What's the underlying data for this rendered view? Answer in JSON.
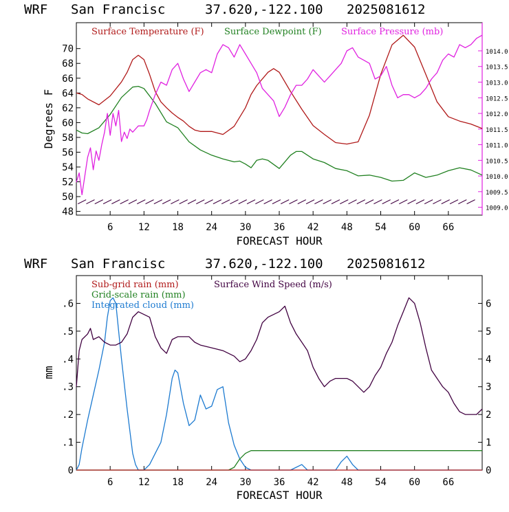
{
  "top_chart": {
    "header": {
      "model": "WRF",
      "site": "San Francisc",
      "coords": "37.620,-122.100",
      "cycle": "2025081612"
    },
    "legend": {
      "temperature": "Surface Temperature (F)",
      "dewpoint": "Surface Dewpoint (F)",
      "pressure": "Surface Pressure (mb)"
    },
    "ylabel": "Degrees F",
    "xlabel": "FORECAST HOUR"
  },
  "bottom_chart": {
    "header": {
      "model": "WRF",
      "site": "San Francisc",
      "coords": "37.620,-122.100",
      "cycle": "2025081612"
    },
    "legend": {
      "subgrid": "Sub-grid rain (mm)",
      "gridscale": "Grid-scale rain (mm)",
      "cloud": "Integrated cloud (mm)",
      "wind": "Surface Wind Speed (m/s)"
    },
    "ylabel": "mm",
    "xlabel": "FORECAST HOUR"
  },
  "colors": {
    "temperature": "#b01818",
    "dewpoint": "#208020",
    "pressure": "#e020e0",
    "subgrid": "#b01818",
    "gridscale": "#208020",
    "cloud": "#1c7ad0",
    "wind": "#400040",
    "barbs": "#400040"
  },
  "chart_data": [
    {
      "type": "line",
      "xlabel": "FORECAST HOUR",
      "ylabel": "Degrees F",
      "xlim": [
        0,
        72
      ],
      "xticks": [
        6,
        12,
        18,
        24,
        30,
        36,
        42,
        48,
        54,
        60,
        66
      ],
      "ylim": [
        47.5,
        73.5
      ],
      "yticks": [
        48,
        50,
        52,
        54,
        56,
        58,
        60,
        62,
        64,
        66,
        68,
        70
      ],
      "y2lim": [
        1008.75,
        1014.9
      ],
      "y2ticks": [
        "1009.0",
        "1009.5",
        "1010.0",
        "1010.5",
        "1011.0",
        "1011.5",
        "1012.0",
        "1012.5",
        "1013.0",
        "1013.5",
        "1014.0"
      ],
      "series": [
        {
          "name": "Surface Temperature (F)",
          "axis": "left",
          "x": [
            0,
            1,
            2,
            4,
            6,
            8,
            9,
            10,
            11,
            12,
            13,
            14,
            15,
            16,
            17,
            18,
            19,
            20,
            21,
            22,
            24,
            26,
            28,
            30,
            31,
            32,
            34,
            35,
            36,
            38,
            40,
            42,
            44,
            46,
            48,
            50,
            52,
            54,
            56,
            58,
            60,
            62,
            64,
            66,
            68,
            70,
            72
          ],
          "y": [
            64,
            63.8,
            63.2,
            62.4,
            63.6,
            65.5,
            66.8,
            68.5,
            69.1,
            68.5,
            66.5,
            64.2,
            62.8,
            62,
            61.3,
            60.7,
            60.2,
            59.5,
            59,
            58.8,
            58.8,
            58.4,
            59.5,
            62,
            63.8,
            65,
            66.8,
            67.3,
            66.8,
            64.2,
            61.8,
            59.6,
            58.4,
            57.3,
            57.1,
            57.4,
            61,
            66.5,
            70.5,
            71.8,
            70.2,
            66.5,
            62.8,
            60.8,
            60.2,
            59.8,
            59.2
          ]
        },
        {
          "name": "Surface Dewpoint (F)",
          "axis": "left",
          "x": [
            0,
            1,
            2,
            4,
            6,
            8,
            10,
            11,
            12,
            14,
            16,
            18,
            20,
            22,
            24,
            26,
            28,
            29,
            30,
            31,
            32,
            33,
            34,
            36,
            38,
            39,
            40,
            42,
            44,
            46,
            48,
            50,
            52,
            54,
            56,
            58,
            60,
            62,
            64,
            66,
            68,
            70,
            72
          ],
          "y": [
            59,
            58.6,
            58.5,
            59.3,
            61.1,
            63.4,
            64.8,
            64.9,
            64.6,
            62.6,
            60.1,
            59.3,
            57.4,
            56.3,
            55.6,
            55.1,
            54.7,
            54.8,
            54.4,
            53.9,
            54.9,
            55.1,
            54.9,
            53.8,
            55.6,
            56.1,
            56.1,
            55.1,
            54.6,
            53.8,
            53.5,
            52.8,
            52.9,
            52.6,
            52.1,
            52.2,
            53.2,
            52.6,
            52.9,
            53.5,
            53.9,
            53.6,
            52.9
          ]
        },
        {
          "name": "Surface Pressure (mb)",
          "axis": "right",
          "x": [
            0,
            0.5,
            1,
            1.5,
            2,
            2.5,
            3,
            3.5,
            4,
            4.5,
            5,
            5.5,
            6,
            6.5,
            7,
            7.5,
            8,
            8.5,
            9,
            9.5,
            10,
            11,
            12,
            12.5,
            13,
            14,
            15,
            16,
            17,
            18,
            19,
            20,
            21,
            22,
            23,
            24,
            25,
            26,
            27,
            28,
            29,
            30,
            31,
            32,
            33,
            34,
            35,
            36,
            37,
            38,
            39,
            40,
            41,
            42,
            43,
            44,
            45,
            46,
            47,
            48,
            49,
            50,
            51,
            52,
            53,
            54,
            55,
            56,
            57,
            58,
            59,
            60,
            61,
            62,
            63,
            64,
            65,
            66,
            67,
            68,
            69,
            70,
            71,
            72
          ],
          "y": [
            1009.8,
            1010.1,
            1009.4,
            1010.0,
            1010.6,
            1010.9,
            1010.2,
            1010.8,
            1010.5,
            1011.0,
            1011.4,
            1012.0,
            1011.3,
            1012.0,
            1011.6,
            1012.1,
            1011.1,
            1011.4,
            1011.2,
            1011.5,
            1011.4,
            1011.6,
            1011.6,
            1011.8,
            1012.1,
            1012.6,
            1013.0,
            1012.9,
            1013.4,
            1013.6,
            1013.1,
            1012.7,
            1013.0,
            1013.3,
            1013.4,
            1013.3,
            1013.9,
            1014.2,
            1014.1,
            1013.8,
            1014.2,
            1013.9,
            1013.6,
            1013.3,
            1012.8,
            1012.6,
            1012.4,
            1011.9,
            1012.2,
            1012.6,
            1012.9,
            1012.9,
            1013.1,
            1013.4,
            1013.2,
            1013.0,
            1013.2,
            1013.4,
            1013.6,
            1014.0,
            1014.1,
            1013.8,
            1013.7,
            1013.6,
            1013.1,
            1013.2,
            1013.5,
            1012.9,
            1012.5,
            1012.6,
            1012.6,
            1012.5,
            1012.6,
            1012.8,
            1013.1,
            1013.3,
            1013.7,
            1013.9,
            1013.8,
            1014.2,
            1014.1,
            1014.2,
            1014.4,
            1014.5
          ]
        }
      ]
    },
    {
      "type": "line",
      "xlabel": "FORECAST HOUR",
      "ylabel": "mm",
      "xlim": [
        0,
        72
      ],
      "xticks": [
        6,
        12,
        18,
        24,
        30,
        36,
        42,
        48,
        54,
        60,
        66
      ],
      "ylim": [
        0,
        0.7
      ],
      "yticks": [
        "0",
        ".1",
        ".2",
        ".3",
        ".4",
        ".5",
        ".6"
      ],
      "y2lim": [
        0,
        7
      ],
      "y2ticks": [
        "0",
        "1",
        "2",
        "3",
        "4",
        "5",
        "6"
      ],
      "series": [
        {
          "name": "Integrated cloud (mm)",
          "axis": "left",
          "x": [
            0,
            0.5,
            1,
            2,
            3,
            4,
            5,
            5.5,
            6,
            6.5,
            7,
            7.5,
            8,
            9,
            10,
            10.5,
            11,
            11.5,
            12,
            13,
            14,
            15,
            16,
            17,
            17.5,
            18,
            19,
            20,
            21,
            22,
            23,
            24,
            25,
            26,
            27,
            28,
            29,
            30,
            31,
            38,
            39,
            40,
            41,
            46,
            47,
            48,
            49,
            50,
            72
          ],
          "y": [
            0,
            0.02,
            0.08,
            0.18,
            0.27,
            0.36,
            0.46,
            0.55,
            0.61,
            0.62,
            0.6,
            0.5,
            0.4,
            0.22,
            0.06,
            0.02,
            0,
            0,
            0,
            0.02,
            0.06,
            0.1,
            0.2,
            0.33,
            0.36,
            0.35,
            0.24,
            0.16,
            0.18,
            0.27,
            0.22,
            0.23,
            0.29,
            0.3,
            0.17,
            0.09,
            0.04,
            0.01,
            0,
            0,
            0.01,
            0.02,
            0,
            0,
            0.03,
            0.05,
            0.02,
            0,
            0
          ]
        },
        {
          "name": "Grid-scale rain (mm)",
          "axis": "left",
          "x": [
            0,
            27,
            28,
            29,
            30,
            31,
            72
          ],
          "y": [
            0,
            0,
            0.01,
            0.04,
            0.06,
            0.07,
            0.07
          ]
        },
        {
          "name": "Sub-grid rain (mm)",
          "axis": "left",
          "x": [
            0,
            72
          ],
          "y": [
            0,
            0
          ]
        },
        {
          "name": "Surface Wind Speed (m/s)",
          "axis": "right",
          "x": [
            0,
            0.5,
            1,
            2,
            2.5,
            3,
            4,
            5,
            6,
            7,
            8,
            9,
            10,
            11,
            12,
            13,
            14,
            15,
            16,
            17,
            18,
            19,
            20,
            21,
            22,
            24,
            26,
            28,
            29,
            30,
            31,
            32,
            33,
            34,
            35,
            36,
            37,
            38,
            39,
            40,
            41,
            42,
            43,
            44,
            45,
            46,
            47,
            48,
            49,
            50,
            51,
            52,
            53,
            54,
            55,
            56,
            57,
            58,
            59,
            60,
            61,
            62,
            63,
            64,
            65,
            66,
            67,
            68,
            69,
            70,
            71,
            72
          ],
          "y": [
            3,
            4.3,
            4.7,
            4.9,
            5.1,
            4.7,
            4.8,
            4.6,
            4.5,
            4.5,
            4.6,
            4.9,
            5.5,
            5.7,
            5.6,
            5.5,
            4.8,
            4.4,
            4.2,
            4.7,
            4.8,
            4.8,
            4.8,
            4.6,
            4.5,
            4.4,
            4.3,
            4.1,
            3.9,
            4.0,
            4.3,
            4.7,
            5.3,
            5.5,
            5.6,
            5.7,
            5.9,
            5.3,
            4.9,
            4.6,
            4.3,
            3.7,
            3.3,
            3.0,
            3.2,
            3.3,
            3.3,
            3.3,
            3.2,
            3.0,
            2.8,
            3.0,
            3.4,
            3.7,
            4.2,
            4.6,
            5.2,
            5.7,
            6.2,
            6.0,
            5.3,
            4.4,
            3.6,
            3.3,
            3.0,
            2.8,
            2.4,
            2.1,
            2.0,
            2.0,
            2.0,
            2.2
          ]
        }
      ]
    }
  ]
}
